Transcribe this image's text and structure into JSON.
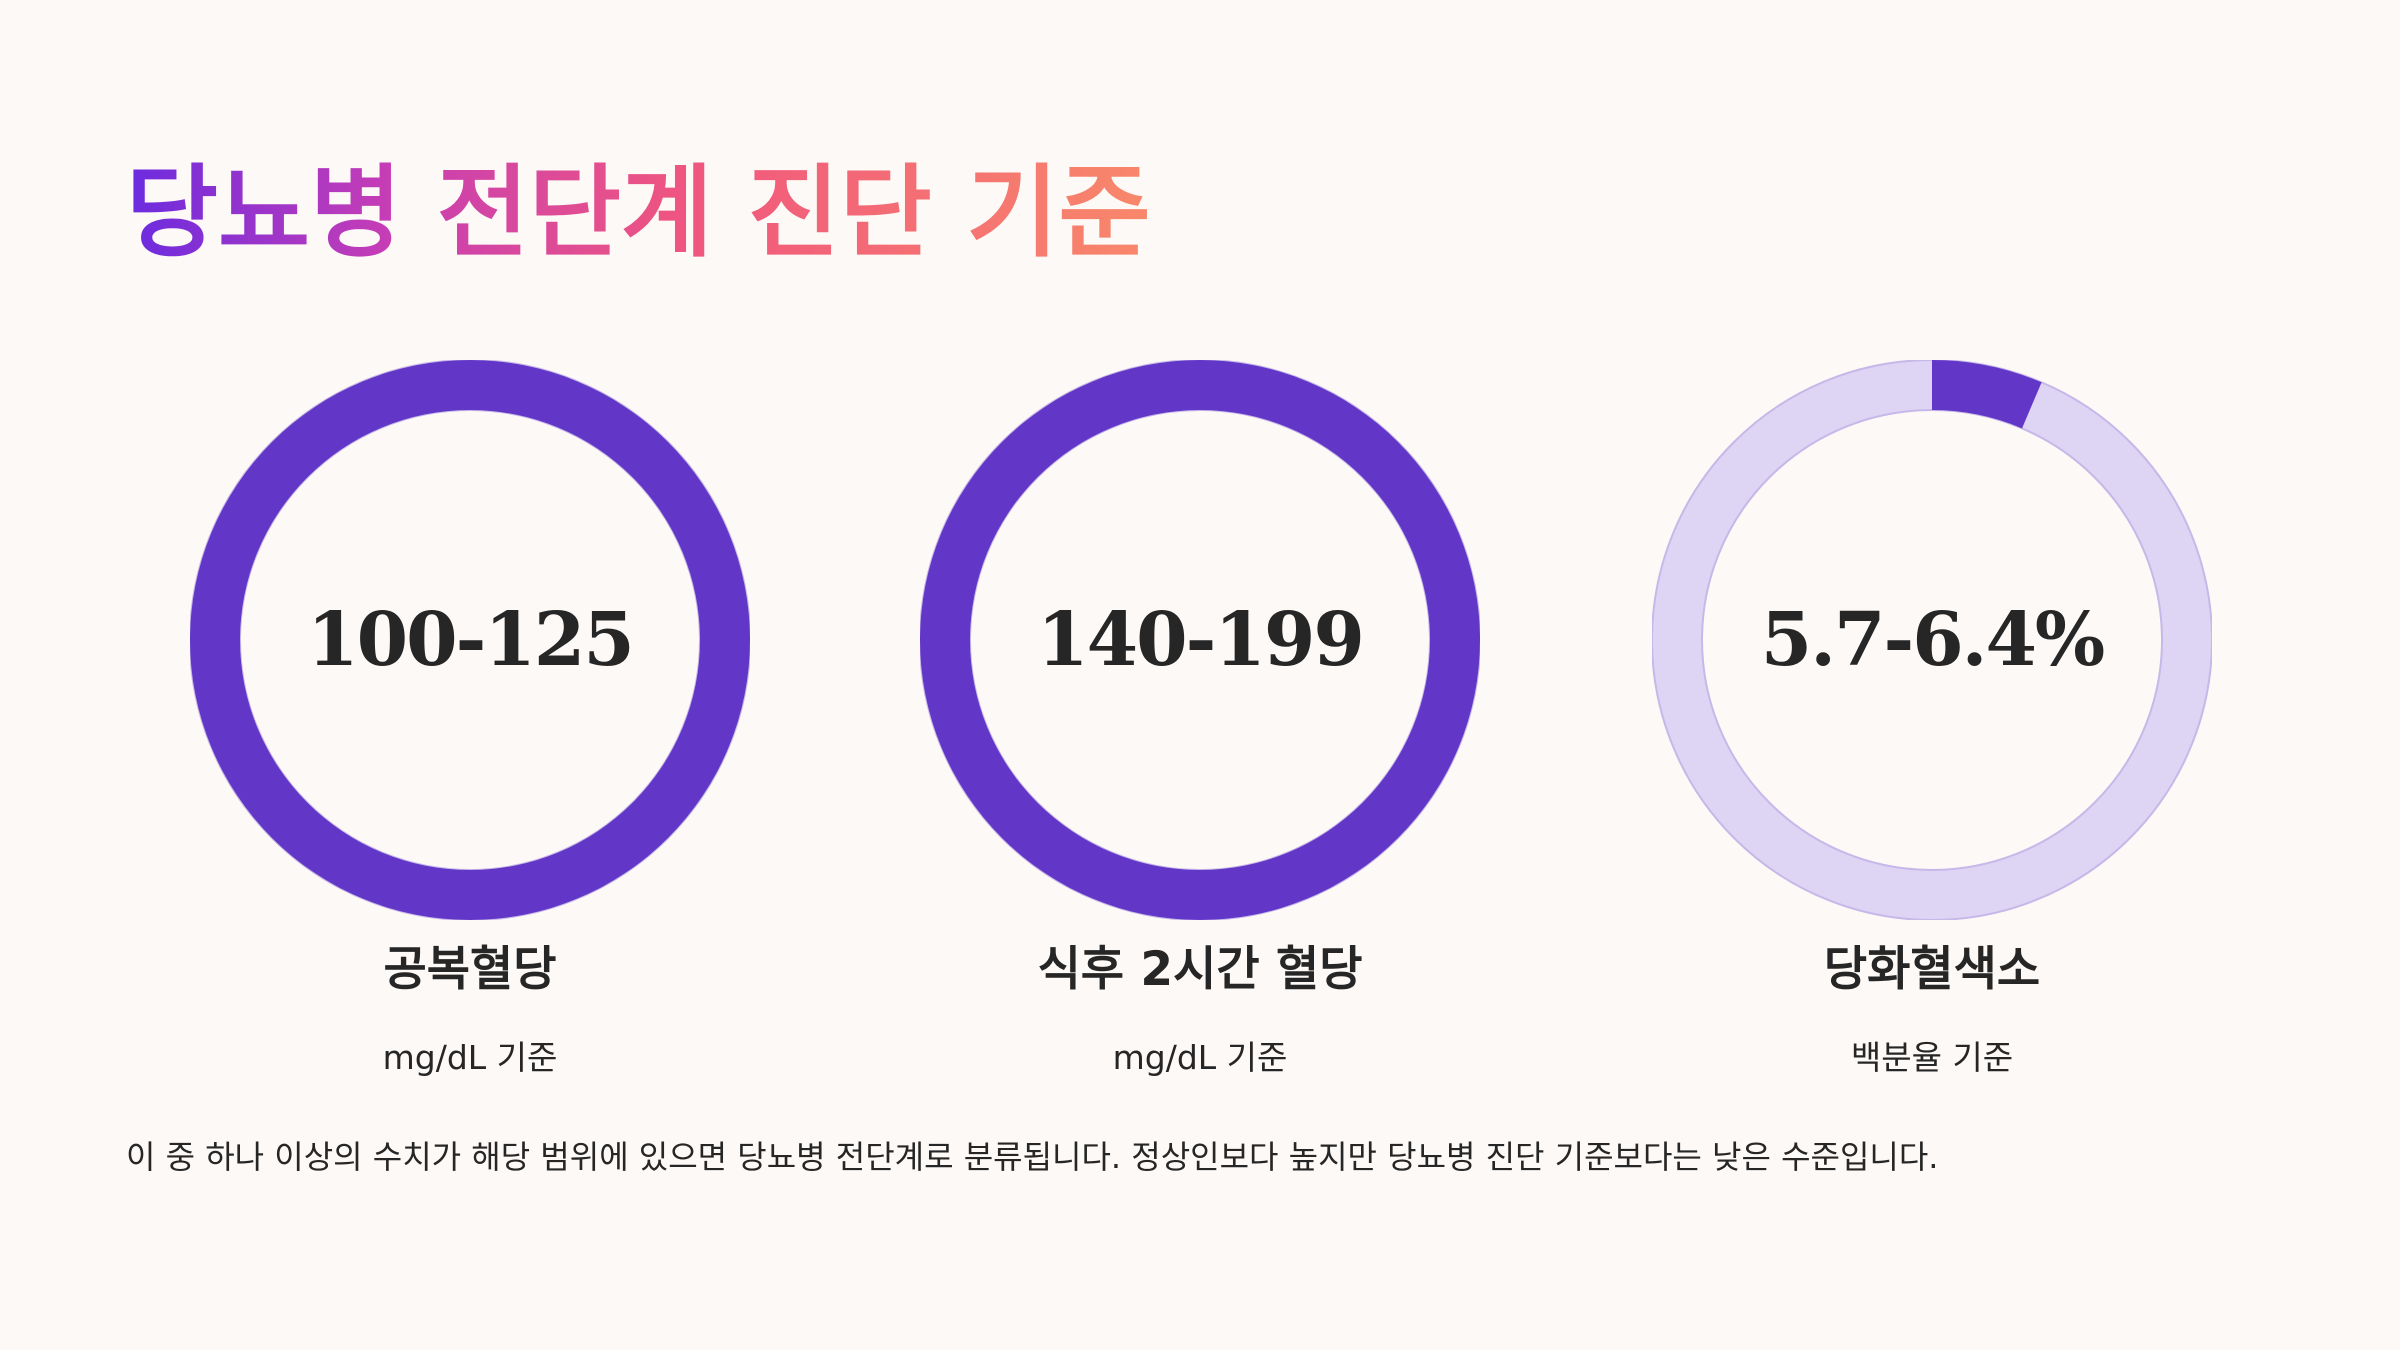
{
  "title": "당뇨병 전단계 진단 기준",
  "colors": {
    "background": "#FDF9F6",
    "accent": "#6237C8",
    "track": "#DED5F4",
    "track_border": "#C6B8E8",
    "text": "#262626",
    "title_gradient": [
      "#6A2BE0",
      "#C53DB6",
      "#F0567E",
      "#F8886A"
    ]
  },
  "cards": [
    {
      "value": "100-125",
      "label": "공복혈당",
      "unit": "mg/dL 기준",
      "progress": 1.0
    },
    {
      "value": "140-199",
      "label": "식후 2시간 혈당",
      "unit": "mg/dL 기준",
      "progress": 1.0
    },
    {
      "value": "5.7-6.4%",
      "label": "당화혈색소",
      "unit": "백분율 기준",
      "progress": 0.064
    }
  ],
  "footer": "이 중 하나 이상의 수치가 해당 범위에 있으면 당뇨병 전단계로 분류됩니다. 정상인보다 높지만 당뇨병 진단 기준보다는 낮은 수준입니다."
}
